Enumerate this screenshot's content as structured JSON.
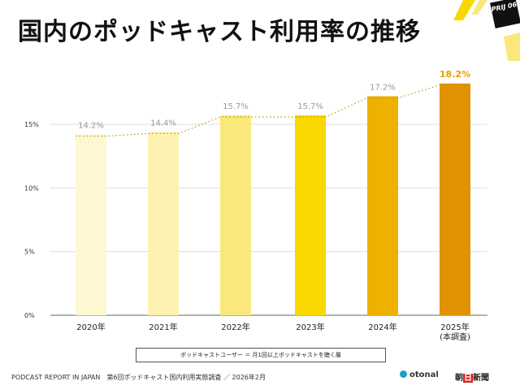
{
  "header": {
    "title": "国内のポッドキャスト利用率の推移",
    "badge": "PRIJ 06"
  },
  "chart_data": {
    "type": "bar",
    "title": "国内のポッドキャスト利用率の推移",
    "categories": [
      "2020年",
      "2021年",
      "2022年",
      "2023年",
      "2024年",
      "2025年"
    ],
    "category_sublabels": [
      "",
      "",
      "",
      "",
      "",
      "(本調査)"
    ],
    "values": [
      14.2,
      14.4,
      15.7,
      15.7,
      17.2,
      18.2
    ],
    "value_labels": [
      "14.2%",
      "14.4%",
      "15.7%",
      "15.7%",
      "17.2%",
      "18.2%"
    ],
    "colors": [
      "#fef8d2",
      "#fdf2b0",
      "#fae87c",
      "#f8d800",
      "#efb100",
      "#e09200"
    ],
    "yticks": [
      0,
      5,
      10,
      15
    ],
    "ytick_labels": [
      "0%",
      "5%",
      "10%",
      "15%"
    ],
    "ylim": [
      0,
      19
    ],
    "trendline": "dotted",
    "highlight_label_color": "#e8a000"
  },
  "legend_note": "ポッドキャストユーザー ＝ 月1回以上ポッドキャストを聴く層",
  "footer": {
    "source": "PODCAST REPORT IN JAPAN　第6回ポッドキャスト国内利用実態調査 ／ 2026年2月",
    "logo1": "otonal",
    "logo2_a": "朝",
    "logo2_b": "日",
    "logo2_c": "新聞"
  }
}
